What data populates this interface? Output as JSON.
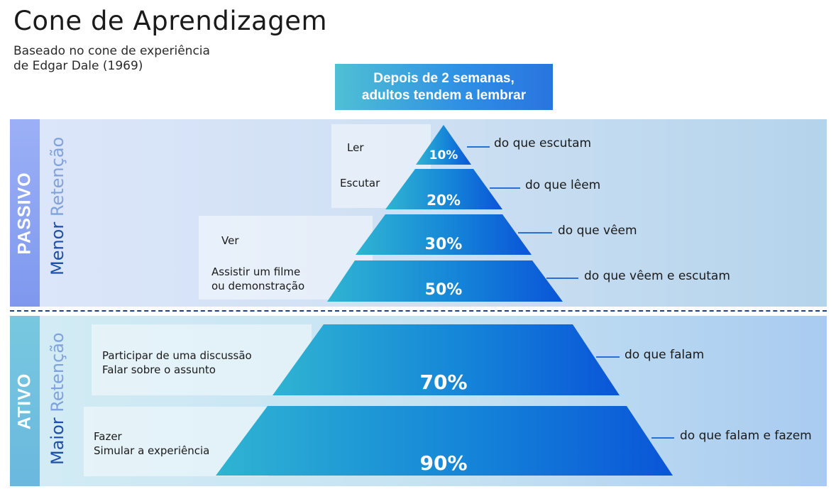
{
  "title": "Cone de Aprendizagem",
  "subtitle": [
    "Baseado no cone de experiência",
    "de Edgar Dale (1969)"
  ],
  "header": [
    "Depois de 2 semanas,",
    "adultos tendem a lembrar"
  ],
  "sections": {
    "passive": {
      "label": "PASSIVO",
      "retention_strong": "Menor",
      "retention_light": "Retenção"
    },
    "active": {
      "label": "ATIVO",
      "retention_strong": "Maior",
      "retention_light": "Retenção"
    }
  },
  "levels": [
    {
      "percent": "10%",
      "activity": [
        "Ler"
      ],
      "result": "do que escutam"
    },
    {
      "percent": "20%",
      "activity": [
        "Escutar"
      ],
      "result": "do que lêem"
    },
    {
      "percent": "30%",
      "activity": [
        "Ver"
      ],
      "result": "do que vêem"
    },
    {
      "percent": "50%",
      "activity": [
        "Assistir um filme",
        "ou demonstração"
      ],
      "result": "do que vêem e escutam"
    },
    {
      "percent": "70%",
      "activity": [
        "Participar de uma discussão",
        "Falar sobre o assunto"
      ],
      "result": "do que falam"
    },
    {
      "percent": "90%",
      "activity": [
        "Fazer",
        "Simular a experiência"
      ],
      "result": "do que falam e fazem"
    }
  ],
  "colors": {
    "accent_dark": "#0a55d8",
    "accent_light": "#2fb0d0",
    "connector": "#2a6fd6"
  }
}
